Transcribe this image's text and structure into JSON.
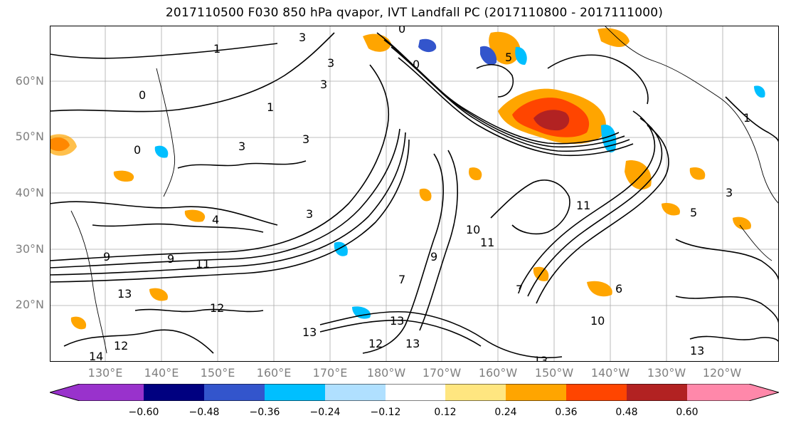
{
  "title": "2017110500 F030 850 hPa qvapor, IVT Landfall PC (2017110800 - 2017111000)",
  "lat_labels": [
    "60°N",
    "50°N",
    "40°N",
    "30°N",
    "20°N"
  ],
  "lon_labels": [
    "130°E",
    "140°E",
    "150°E",
    "160°E",
    "170°E",
    "180°W",
    "170°W",
    "160°W",
    "150°W",
    "140°W",
    "130°W",
    "120°W"
  ],
  "contour_labels": [
    "0",
    "1",
    "3",
    "3",
    "0",
    "3",
    "0",
    "5",
    "1",
    "3",
    "0",
    "1",
    "3",
    "4",
    "3",
    "9",
    "11",
    "9",
    "13",
    "12",
    "14",
    "12",
    "13",
    "13",
    "13",
    "12",
    "10",
    "11",
    "7",
    "9",
    "11",
    "5",
    "3",
    "6",
    "13",
    "13",
    "7",
    "10"
  ],
  "colorbar": {
    "colors": [
      "#9932cc",
      "#000080",
      "#3355cc",
      "#00bfff",
      "#b0e0ff",
      "#ffffff",
      "#ffe680",
      "#ffa500",
      "#ff4500",
      "#b22222",
      "#ff88aa"
    ],
    "tick_labels": [
      "−0.60",
      "−0.48",
      "−0.36",
      "−0.24",
      "−0.12",
      "0.12",
      "0.24",
      "0.36",
      "0.48",
      "0.60"
    ]
  }
}
